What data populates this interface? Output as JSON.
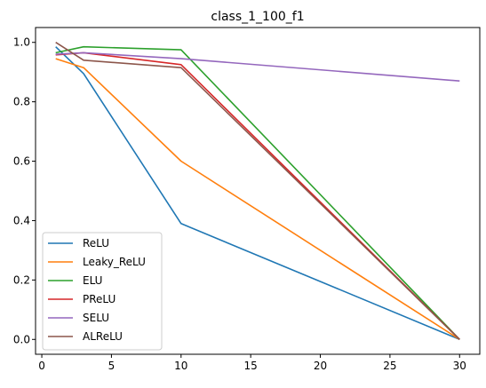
{
  "chart_data": {
    "type": "line",
    "title": "class_1_100_f1",
    "xlabel": "",
    "ylabel": "",
    "x": [
      1,
      3,
      10,
      30
    ],
    "xlim": [
      -0.45,
      31.45
    ],
    "ylim": [
      -0.05,
      1.05
    ],
    "xticks": [
      0,
      5,
      10,
      15,
      20,
      25,
      30
    ],
    "yticks": [
      0.0,
      0.2,
      0.4,
      0.6,
      0.8,
      1.0
    ],
    "xtick_labels": [
      "0",
      "5",
      "10",
      "15",
      "20",
      "25",
      "30"
    ],
    "ytick_labels": [
      "0.0",
      "0.2",
      "0.4",
      "0.6",
      "0.8",
      "1.0"
    ],
    "grid": false,
    "legend_position": "lower-left",
    "series": [
      {
        "name": "ReLU",
        "color": "#1f77b4",
        "values": [
          0.985,
          0.895,
          0.39,
          0.0
        ]
      },
      {
        "name": "Leaky_ReLU",
        "color": "#ff7f0e",
        "values": [
          0.945,
          0.915,
          0.6,
          0.0
        ]
      },
      {
        "name": "ELU",
        "color": "#2ca02c",
        "values": [
          0.965,
          0.985,
          0.975,
          0.0
        ]
      },
      {
        "name": "PReLU",
        "color": "#d62728",
        "values": [
          0.958,
          0.965,
          0.925,
          0.0
        ]
      },
      {
        "name": "SELU",
        "color": "#9467bd",
        "values": [
          0.96,
          0.965,
          0.945,
          0.87
        ]
      },
      {
        "name": "ALReLU",
        "color": "#8c564b",
        "values": [
          1.0,
          0.94,
          0.915,
          0.0
        ]
      }
    ]
  }
}
